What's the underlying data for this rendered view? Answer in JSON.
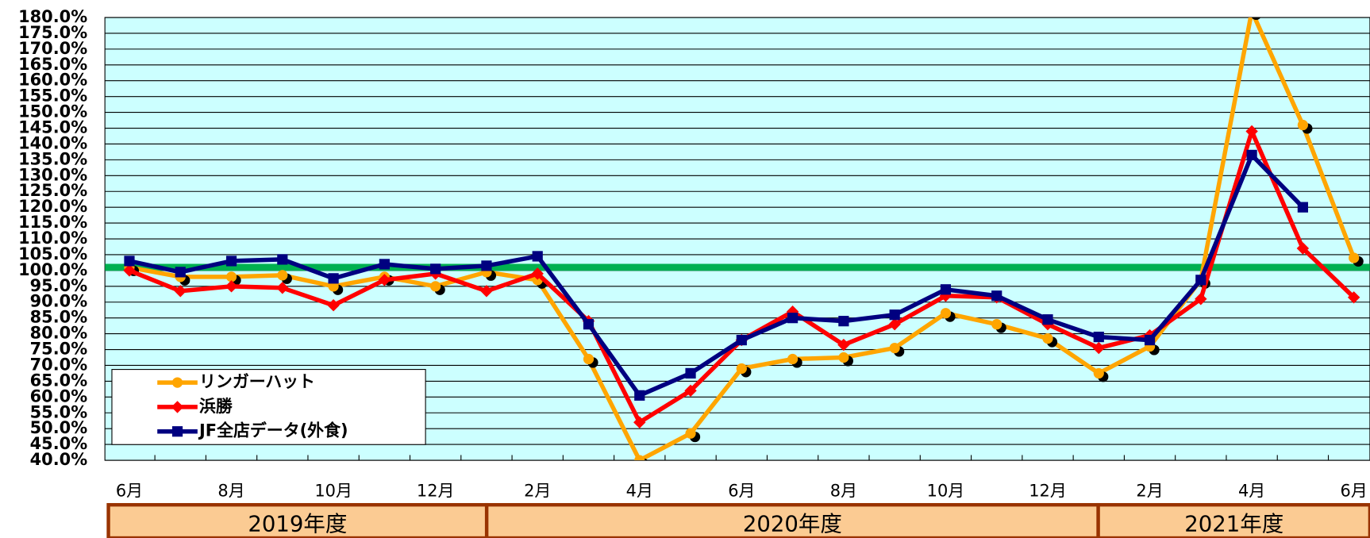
{
  "chart_data": {
    "type": "line",
    "categories": [
      "6月",
      null,
      "8月",
      null,
      "10月",
      null,
      "12月",
      null,
      "2月",
      null,
      "4月",
      null,
      "6月",
      null,
      "8月",
      null,
      "10月",
      null,
      "12月",
      null,
      "2月",
      null,
      "4月",
      null,
      "6月"
    ],
    "fiscal_years": [
      "2019年度",
      "2020年度",
      "2021年度"
    ],
    "series": [
      {
        "name": "リンガーハット",
        "color": "#ffa500",
        "marker": "circle",
        "values": [
          101,
          98,
          98,
          98.5,
          95,
          98,
          95,
          99.5,
          97,
          72,
          40,
          48.5,
          69,
          72,
          72.5,
          75.5,
          86.5,
          83,
          78.5,
          67.5,
          76,
          97,
          182,
          146,
          104
        ]
      },
      {
        "name": "浜勝",
        "color": "#ff0000",
        "marker": "diamond",
        "values": [
          100,
          93.5,
          95,
          94.5,
          89,
          97,
          99,
          93.5,
          99,
          84,
          52,
          62,
          78,
          87,
          76.5,
          83,
          92,
          91.5,
          83,
          75.5,
          79.5,
          91,
          144,
          107,
          91.5
        ]
      },
      {
        "name": "JF全店データ(外食)",
        "color": "#000080",
        "marker": "square",
        "values": [
          103,
          99.5,
          103,
          103.5,
          97.5,
          102,
          100.5,
          101.5,
          104.5,
          83,
          60.5,
          67.5,
          78,
          85,
          84,
          86,
          94,
          92,
          84.5,
          79,
          78,
          97,
          136.5,
          120,
          null
        ]
      }
    ],
    "reference_line": 101,
    "reference_color": "#00b050",
    "ylim": [
      40,
      180
    ],
    "yticks": [
      {
        "value": 40,
        "label": "40.0%"
      },
      {
        "value": 45,
        "label": "45.0%"
      },
      {
        "value": 50,
        "label": "50.0%"
      },
      {
        "value": 55,
        "label": "55.0%"
      },
      {
        "value": 60,
        "label": "60.0%"
      },
      {
        "value": 65,
        "label": "65.0%"
      },
      {
        "value": 70,
        "label": "70.0%"
      },
      {
        "value": 75,
        "label": "75.0%"
      },
      {
        "value": 80,
        "label": "80.0%"
      },
      {
        "value": 85,
        "label": "85.0%"
      },
      {
        "value": 90,
        "label": "90.0%"
      },
      {
        "value": 95,
        "label": "95.0%"
      },
      {
        "value": 100,
        "label": "100.0%"
      },
      {
        "value": 105,
        "label": "105.0%"
      },
      {
        "value": 110,
        "label": "110.0%"
      },
      {
        "value": 115,
        "label": "115.0%"
      },
      {
        "value": 120,
        "label": "120.0%"
      },
      {
        "value": 125,
        "label": "125.0%"
      },
      {
        "value": 130,
        "label": "130.0%"
      },
      {
        "value": 135,
        "label": "135.0%"
      },
      {
        "value": 140,
        "label": "140.0%"
      },
      {
        "value": 145,
        "label": "145.0%"
      },
      {
        "value": 150,
        "label": "150.0%"
      },
      {
        "value": 155,
        "label": "155.0%"
      },
      {
        "value": 160,
        "label": "160.0%"
      },
      {
        "value": 165,
        "label": "165.0%"
      },
      {
        "value": 170,
        "label": "170.0%"
      },
      {
        "value": 175,
        "label": "175.0%"
      },
      {
        "value": 180,
        "label": "180.0%"
      }
    ],
    "grid": true,
    "plot_background": "#ccffff",
    "legend": "lower left"
  }
}
